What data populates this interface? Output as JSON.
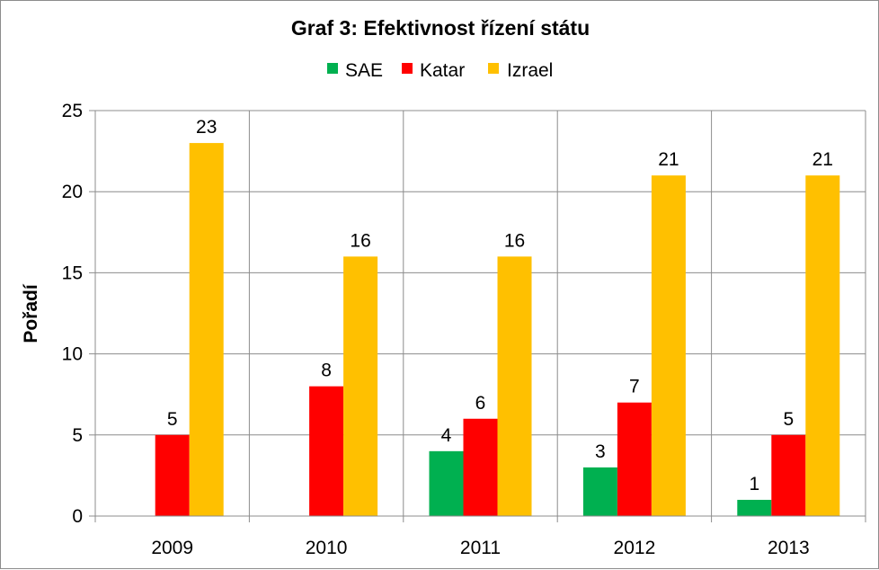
{
  "chart_data": {
    "type": "bar",
    "title": "Graf 3: Efektivnost řízení státu",
    "xlabel": "",
    "ylabel": "Pořadí",
    "ylim": [
      0,
      25
    ],
    "yticks": [
      0,
      5,
      10,
      15,
      20,
      25
    ],
    "grid": true,
    "legend_position": "top",
    "categories": [
      "2009",
      "2010",
      "2011",
      "2012",
      "2013"
    ],
    "series": [
      {
        "name": "SAE",
        "color": "#00b050",
        "values": [
          null,
          null,
          4,
          3,
          1
        ]
      },
      {
        "name": "Katar",
        "color": "#ff0000",
        "values": [
          5,
          8,
          6,
          7,
          5
        ]
      },
      {
        "name": "Izrael",
        "color": "#ffc000",
        "values": [
          23,
          16,
          16,
          21,
          21
        ]
      }
    ]
  }
}
